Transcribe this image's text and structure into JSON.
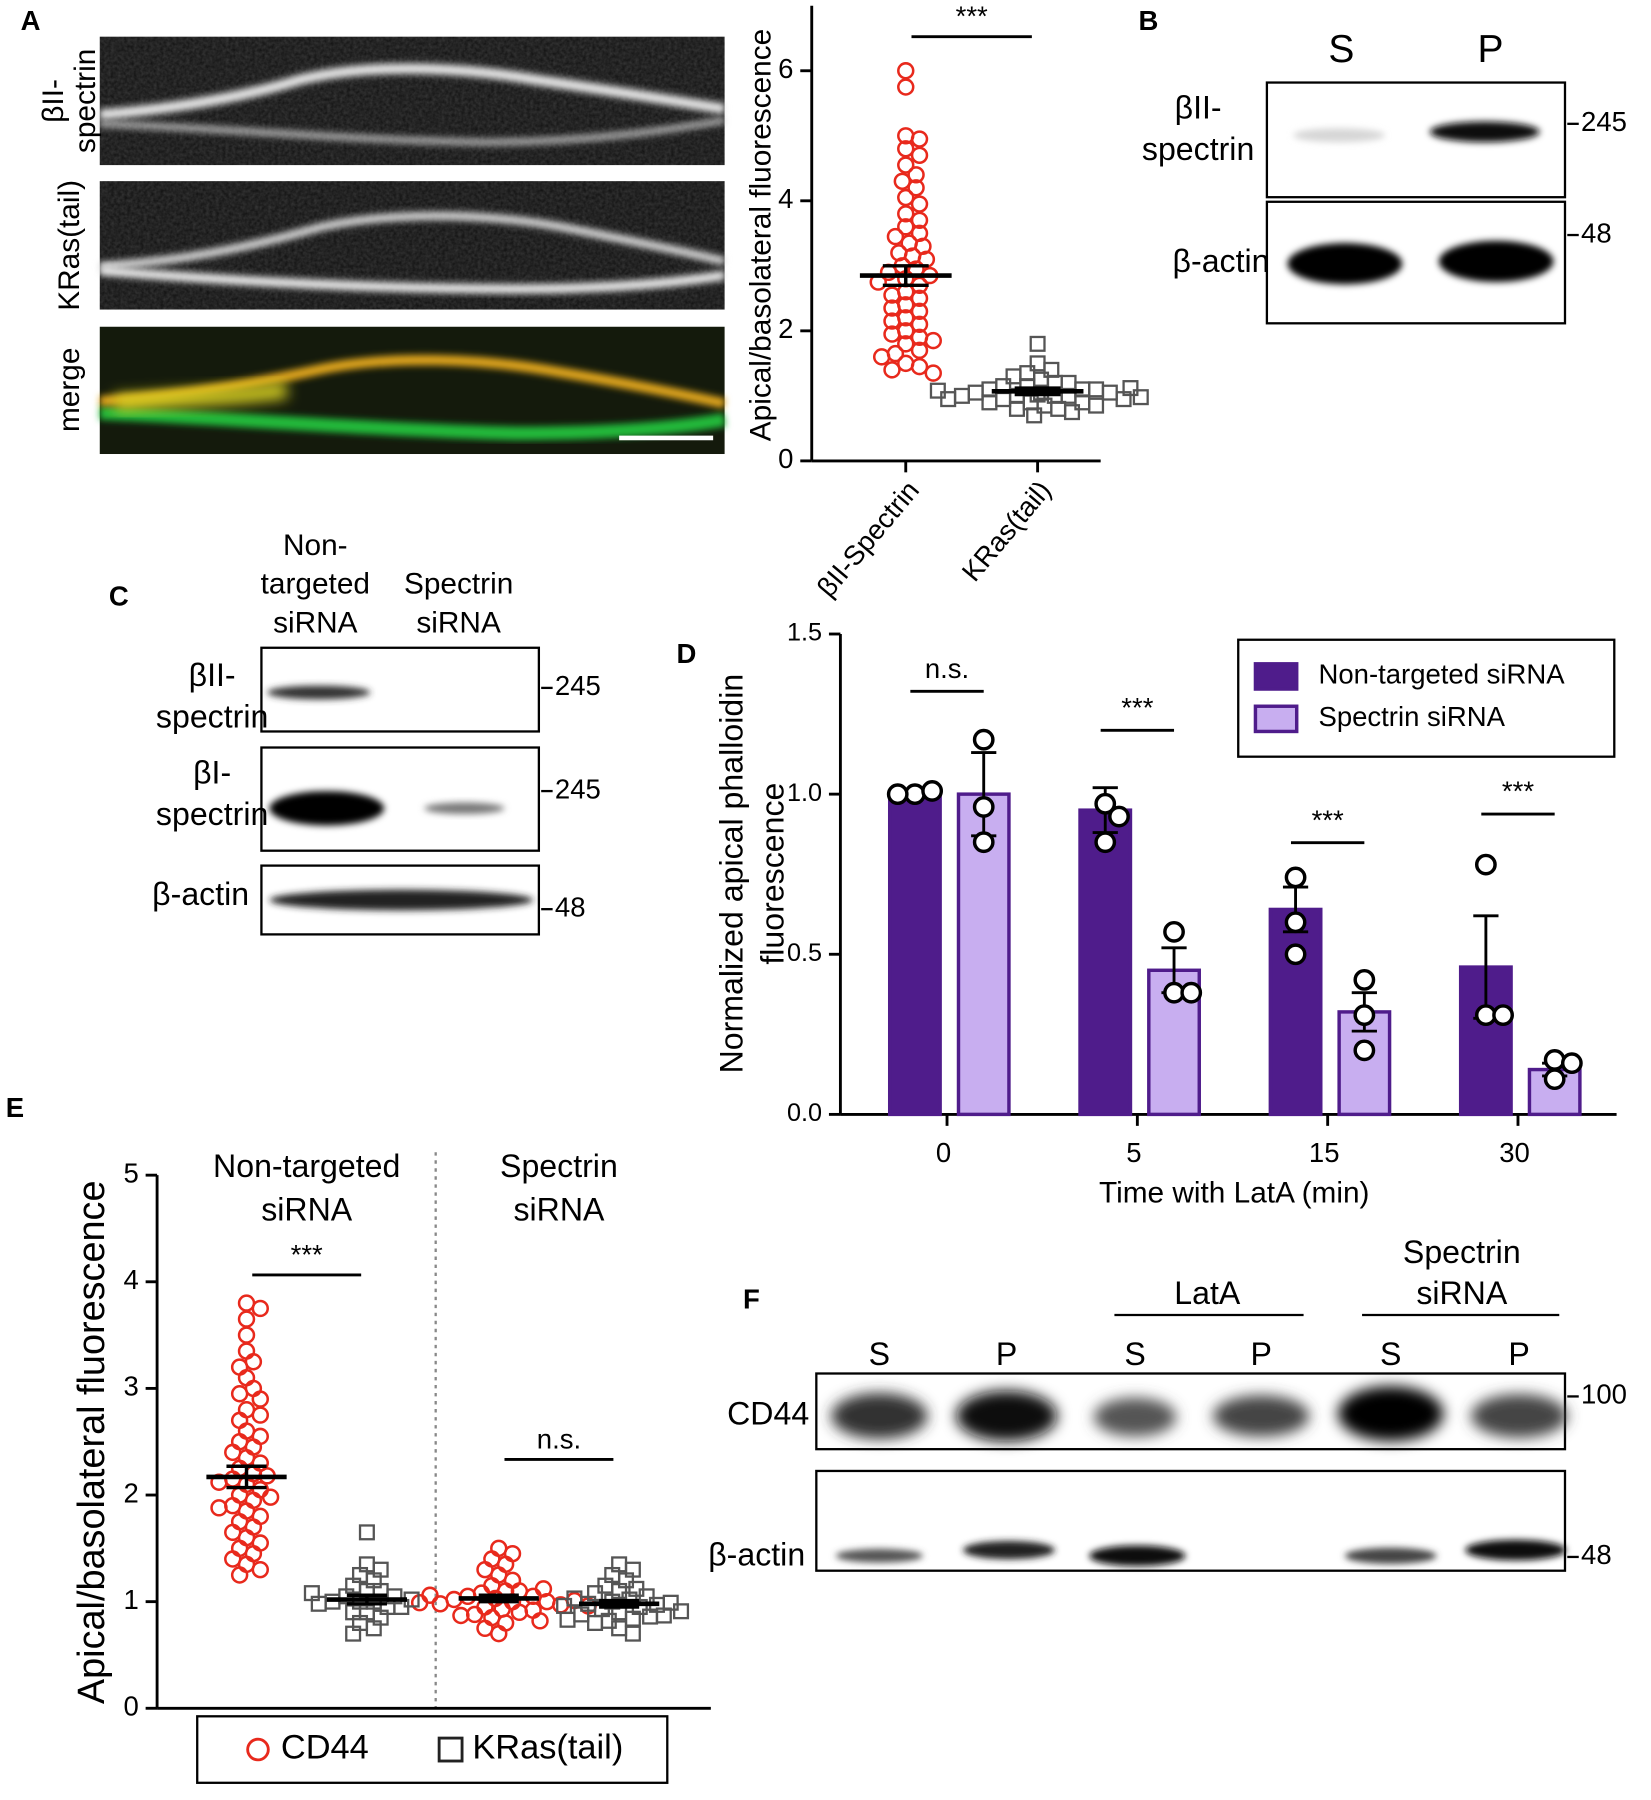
{
  "panel_labels": [
    "A",
    "B",
    "C",
    "D",
    "E",
    "F"
  ],
  "micrographs": {
    "channels": [
      {
        "label": [
          "βII-",
          "spectrin"
        ],
        "color": "#e8462a"
      },
      {
        "label": "KRas(tail)",
        "color": "#1f9a3e"
      },
      {
        "label": "merge",
        "color": "#000000"
      }
    ]
  },
  "blots": [
    {
      "lanes": [
        "S",
        "P"
      ],
      "rows": [
        {
          "label": [
            "βII-",
            "spectrin"
          ],
          "marker": 245
        },
        {
          "label": "β-actin",
          "marker": 48
        }
      ]
    },
    {
      "lanes": [
        [
          "Non-",
          "targeted",
          "siRNA"
        ],
        [
          "Spectrin",
          "siRNA"
        ]
      ],
      "rows": [
        {
          "label": [
            "βII-",
            "spectrin"
          ],
          "marker": 245
        },
        {
          "label": [
            "βI-",
            "spectrin"
          ],
          "marker": 245
        },
        {
          "label": "β-actin",
          "marker": 48
        }
      ]
    },
    {
      "groups": [
        [
          "LatA"
        ],
        [
          "Spectrin",
          "siRNA"
        ]
      ],
      "lanes": [
        "S",
        "P",
        "S",
        "P",
        "S",
        "P"
      ],
      "rows": [
        {
          "label": "CD44",
          "marker": 100
        },
        {
          "label": "β-actin",
          "marker": 48
        }
      ]
    }
  ],
  "chart_data": [
    {
      "type": "dot",
      "ylabel": "Apical/basolateral fluorescence",
      "ylim": [
        0,
        7
      ],
      "yticks": [
        0,
        2,
        4,
        6
      ],
      "significance": [
        "***"
      ],
      "series": [
        {
          "name": "βII-Spectrin",
          "color": "#e8291c",
          "marker": "circle",
          "values": [
            [
              6.0,
              5.75,
              5.0,
              4.95,
              4.8,
              4.7,
              4.55,
              4.4,
              4.3,
              4.2,
              4.05,
              3.95,
              3.8,
              3.7,
              3.6,
              3.5,
              3.45,
              3.35,
              3.3,
              3.2,
              3.15,
              3.1,
              3.0,
              2.95,
              2.9,
              2.85,
              2.8,
              2.75,
              2.7,
              2.6,
              2.55,
              2.5,
              2.4,
              2.35,
              2.3,
              2.2,
              2.15,
              2.1,
              2.0,
              1.95,
              1.9,
              1.85,
              1.8,
              1.7,
              1.65,
              1.6,
              1.5,
              1.45,
              1.4,
              1.35
            ]
          ],
          "means": [
            2.85
          ],
          "sems": [
            0.15
          ]
        },
        {
          "name": "KRas(tail)",
          "color": "#555555",
          "marker": "square",
          "values": [
            [
              1.8,
              1.5,
              1.4,
              1.35,
              1.3,
              1.25,
              1.2,
              1.2,
              1.15,
              1.15,
              1.1,
              1.1,
              1.1,
              1.05,
              1.05,
              1.05,
              1.0,
              1.0,
              1.0,
              1.0,
              0.95,
              0.95,
              0.95,
              0.9,
              0.9,
              0.9,
              0.85,
              0.85,
              0.8,
              0.8,
              0.75,
              0.7,
              1.12,
              1.08,
              1.02,
              0.98
            ]
          ],
          "means": [
            1.07
          ],
          "sems": [
            0.05
          ]
        }
      ]
    },
    {
      "type": "bar",
      "ylabel": [
        "Normalized  apical phalloidin",
        "fluorescence"
      ],
      "xlabel": "Time with LatA (min)",
      "categories": [
        "0",
        "5",
        "15",
        "30"
      ],
      "ylim": [
        0,
        1.5
      ],
      "yticks": [
        {
          "value": 0,
          "label": "0.0"
        },
        {
          "value": 0.5,
          "label": "0.5"
        },
        {
          "value": 1,
          "label": "1.0"
        },
        {
          "value": 1.5,
          "label": "1.5"
        }
      ],
      "legend": "upper right",
      "significance": [
        "n.s.",
        "***",
        "***",
        "***"
      ],
      "series": [
        {
          "name": "Non-targeted siRNA",
          "color": "#4f1c8b",
          "edgecolor": "#4f1c8b",
          "values": [
            1.0,
            0.95,
            0.64,
            0.46
          ],
          "errors": [
            0.01,
            0.07,
            0.07,
            0.16
          ],
          "points": [
            [
              1.0,
              1.01,
              1.0
            ],
            [
              0.97,
              0.85,
              0.93
            ],
            [
              0.74,
              0.5,
              0.6
            ],
            [
              0.78,
              0.31,
              0.31
            ]
          ]
        },
        {
          "name": "Spectrin siRNA",
          "color": "#c8aef0",
          "edgecolor": "#4f1c8b",
          "values": [
            1.0,
            0.45,
            0.32,
            0.14
          ],
          "errors": [
            0.13,
            0.07,
            0.06,
            0.02
          ],
          "points": [
            [
              1.17,
              0.85,
              0.96
            ],
            [
              0.57,
              0.38,
              0.38
            ],
            [
              0.42,
              0.2,
              0.31
            ],
            [
              0.17,
              0.11,
              0.16
            ]
          ]
        }
      ]
    },
    {
      "type": "dot",
      "ylabel": "Apical/basolateral fluorescence",
      "ylim": [
        0,
        5
      ],
      "yticks": [
        0,
        1,
        2,
        3,
        4,
        5
      ],
      "groups": [
        [
          "Non-targeted",
          "siRNA"
        ],
        [
          "Spectrin",
          "siRNA"
        ]
      ],
      "significance": [
        "***",
        "n.s."
      ],
      "series": [
        {
          "name": "CD44",
          "color": "#e8291c",
          "marker": "circle",
          "values": [
            [
              3.8,
              3.75,
              3.65,
              3.5,
              3.35,
              3.25,
              3.2,
              3.1,
              3.0,
              2.95,
              2.9,
              2.8,
              2.75,
              2.7,
              2.6,
              2.55,
              2.5,
              2.45,
              2.4,
              2.35,
              2.3,
              2.25,
              2.2,
              2.15,
              2.1,
              2.05,
              2.0,
              1.95,
              1.9,
              1.85,
              1.8,
              1.75,
              1.7,
              1.65,
              1.6,
              1.55,
              1.5,
              1.45,
              1.4,
              1.35,
              1.3,
              1.25,
              2.18,
              2.12,
              1.98,
              1.88
            ],
            [
              1.5,
              1.45,
              1.4,
              1.35,
              1.3,
              1.25,
              1.2,
              1.15,
              1.1,
              1.1,
              1.08,
              1.05,
              1.05,
              1.03,
              1.02,
              1.0,
              1.0,
              0.98,
              0.97,
              0.95,
              0.93,
              0.9,
              0.88,
              0.85,
              0.8,
              0.75,
              0.7,
              1.12,
              1.06,
              1.01,
              0.99,
              0.96,
              0.92,
              0.87,
              0.82
            ]
          ],
          "means": [
            2.17,
            1.03
          ],
          "sems": [
            0.1,
            0.03
          ]
        },
        {
          "name": "KRas(tail)",
          "color": "#555555",
          "marker": "square",
          "values": [
            [
              1.65,
              1.35,
              1.3,
              1.25,
              1.2,
              1.15,
              1.1,
              1.1,
              1.05,
              1.05,
              1.0,
              1.0,
              1.0,
              0.95,
              0.95,
              0.9,
              0.9,
              0.85,
              0.8,
              0.75,
              0.7,
              1.02,
              0.98,
              1.08
            ],
            [
              1.35,
              1.3,
              1.25,
              1.2,
              1.15,
              1.12,
              1.1,
              1.08,
              1.05,
              1.02,
              1.0,
              0.98,
              0.97,
              0.95,
              0.93,
              0.9,
              0.88,
              0.86,
              0.84,
              0.82,
              0.8,
              0.75,
              0.7,
              1.03,
              0.99,
              0.96,
              0.91,
              0.87,
              0.83
            ]
          ],
          "means": [
            1.02,
            0.98
          ],
          "sems": [
            0.04,
            0.03
          ]
        }
      ]
    }
  ]
}
